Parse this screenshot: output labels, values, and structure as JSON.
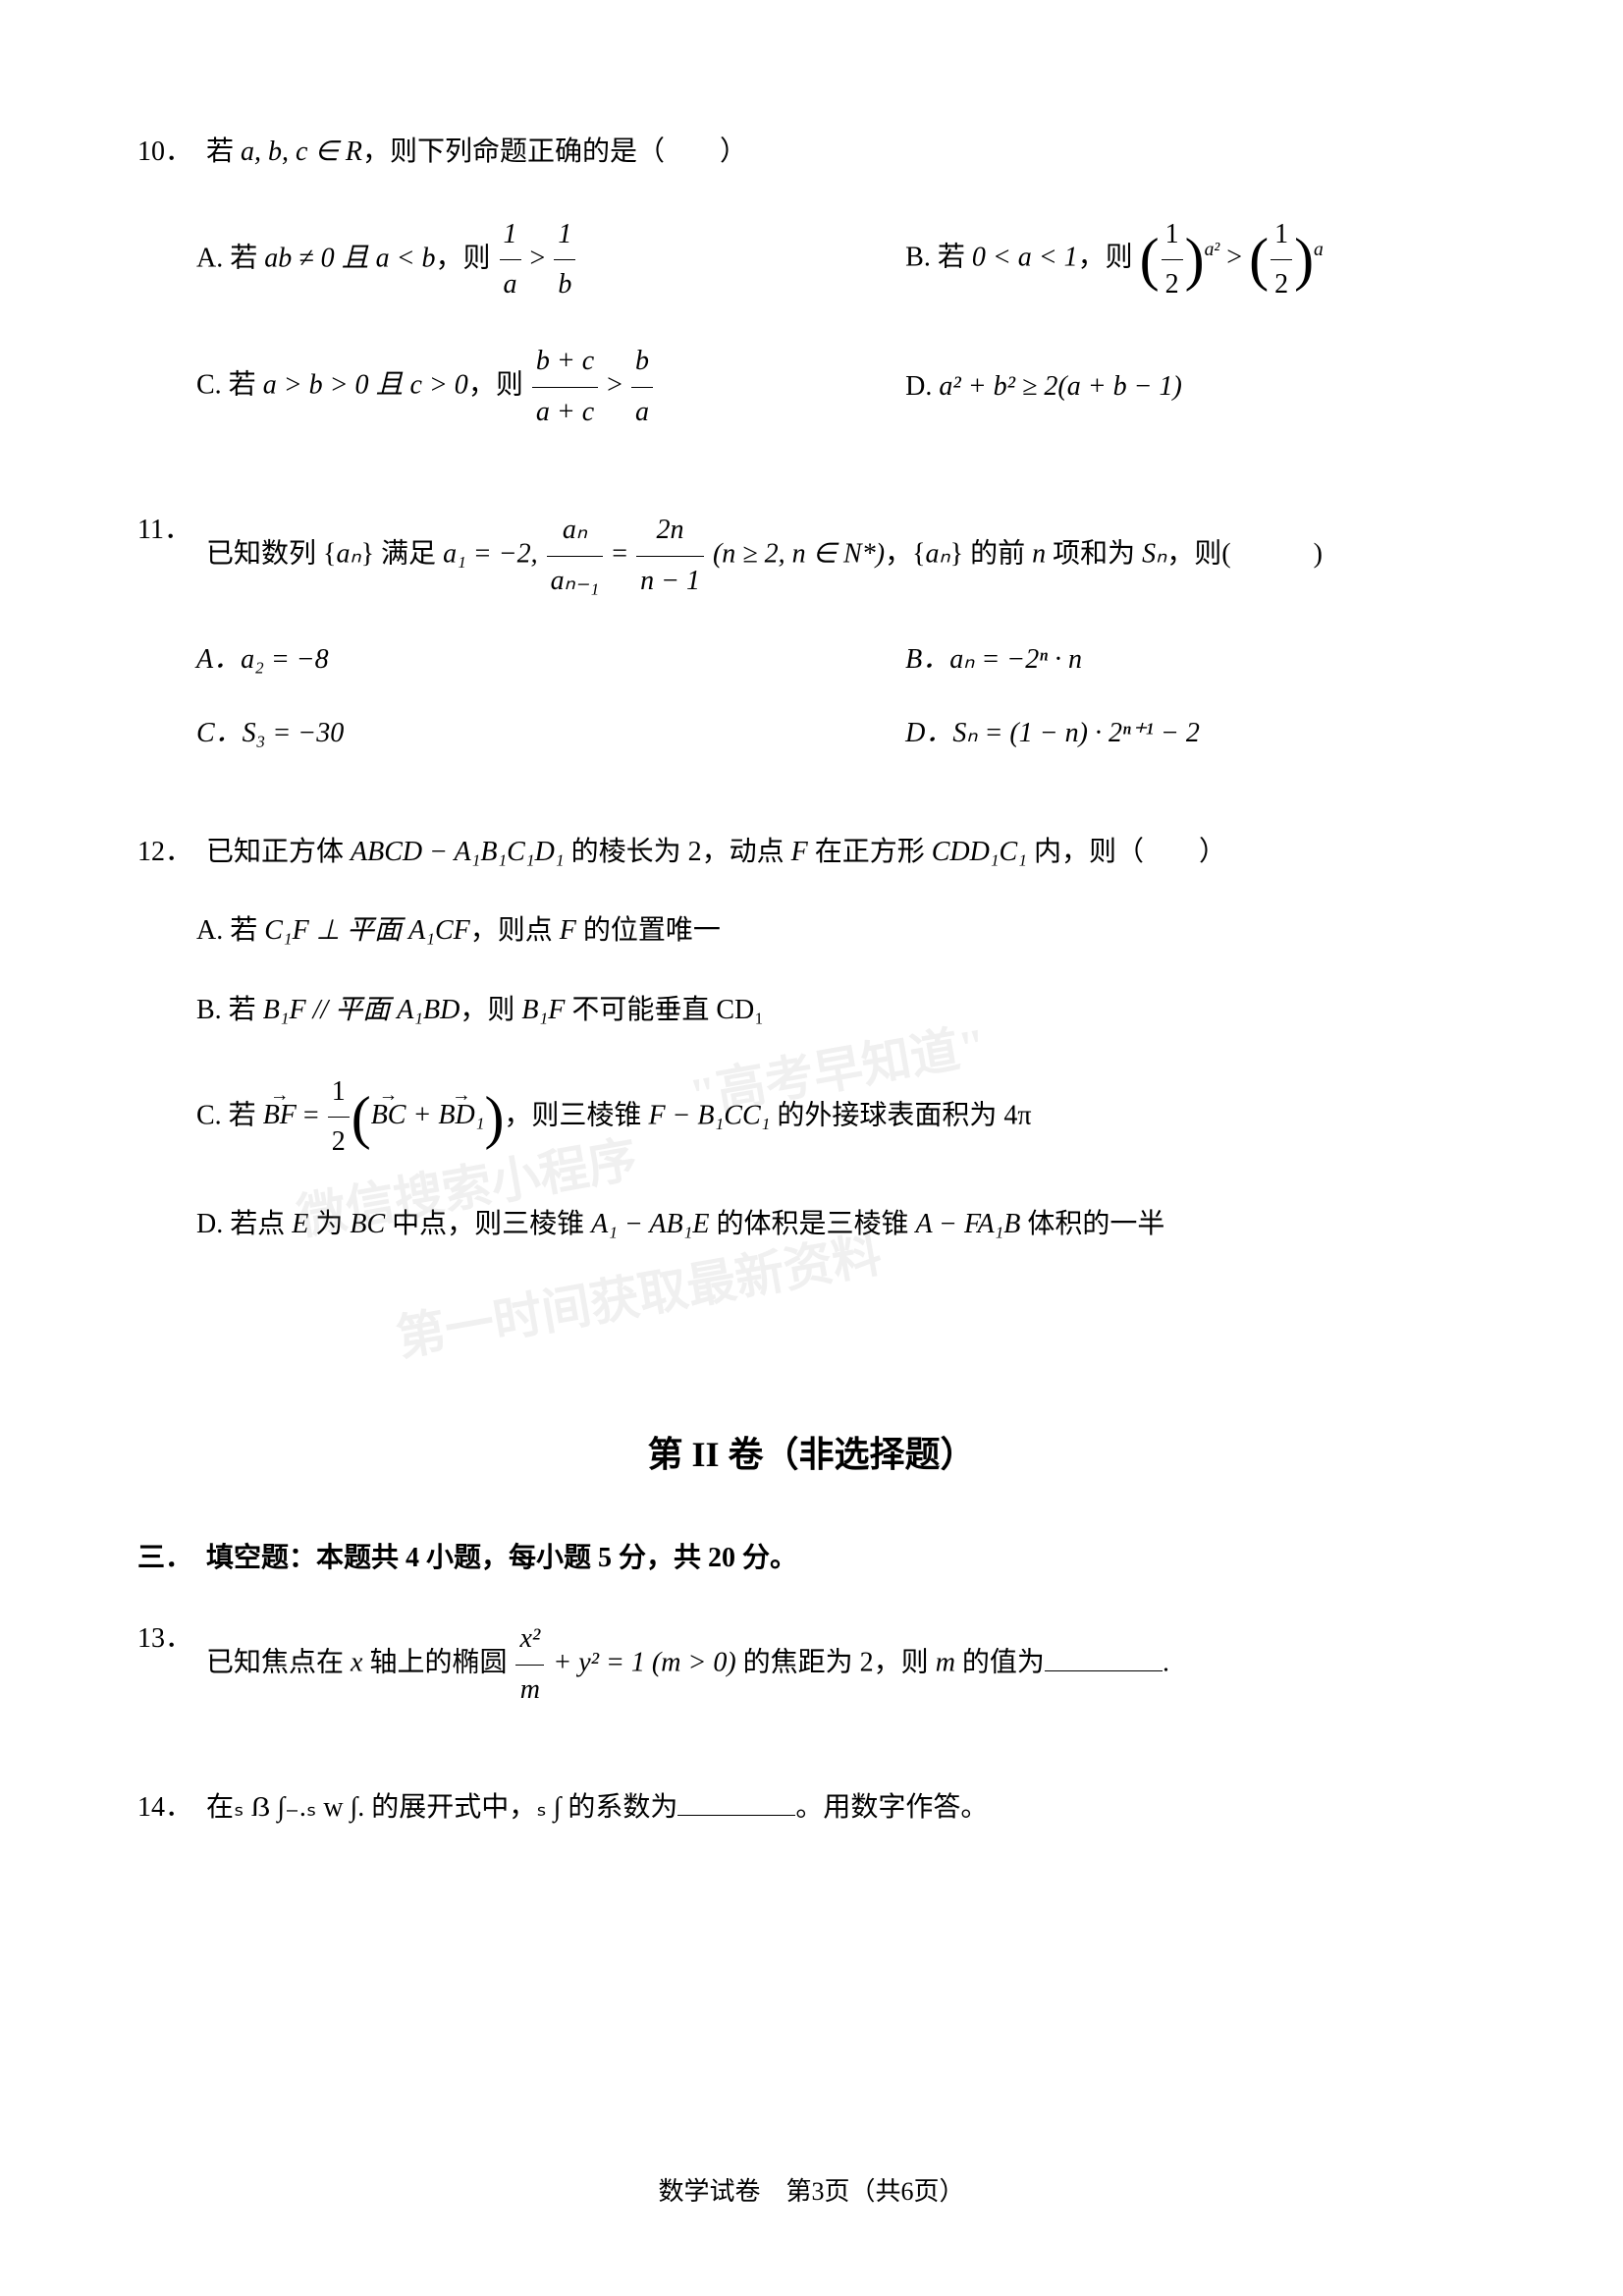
{
  "page": {
    "background_color": "#ffffff",
    "text_color": "#000000",
    "base_fontsize": 28,
    "footer": "数学试卷　第3页（共6页）"
  },
  "watermarks": {
    "line1": "\"高考早知道\"",
    "line2": "微信搜索小程序",
    "line3": "第一时间获取最新资料"
  },
  "questions": [
    {
      "number": "10．",
      "stem_parts": {
        "p1": "若 ",
        "p2": "a, b, c ∈ R",
        "p3": "，则下列命题正确的是（　　）"
      },
      "options": {
        "A": {
          "prefix": "A. 若 ",
          "math": "ab ≠ 0 且 a < b",
          "mid": "，则 ",
          "frac1_num": "1",
          "frac1_den": "a",
          "op": " > ",
          "frac2_num": "1",
          "frac2_den": "b"
        },
        "B": {
          "prefix": "B. 若 ",
          "cond": "0 < a < 1",
          "mid": "，则 ",
          "base1": "½",
          "exp1": "a²",
          "op": " > ",
          "base2": "½",
          "exp2": "a"
        },
        "C": {
          "prefix": "C. 若 ",
          "cond": "a > b > 0 且 c > 0",
          "mid": "，则 ",
          "f1num": "b + c",
          "f1den": "a + c",
          "op": " > ",
          "f2num": "b",
          "f2den": "a"
        },
        "D": {
          "prefix": "D. ",
          "math": "a² + b² ≥ 2(a + b − 1)"
        }
      }
    },
    {
      "number": "11．",
      "stem_parts": {
        "p1": "已知数列 {",
        "p2": "aₙ",
        "p3": "} 满足 ",
        "a1": "a₁ = −2, ",
        "frac_an_num": "aₙ",
        "frac_an_den": "aₙ₋₁",
        "eq": " = ",
        "frac2_num": "2n",
        "frac2_den": "n − 1",
        "cond": " (n ≥ 2, n ∈ N*)",
        "p4": "，{",
        "p5": "aₙ",
        "p6": "} 的前 ",
        "p7": "n",
        "p8": " 项和为 ",
        "sn": "Sₙ",
        "p9": "，则(　　　)"
      },
      "options": {
        "A": "A．a₂ = −8",
        "B": "B．aₙ = −2ⁿ · n",
        "C": "C．S₃ = −30",
        "D": "D．Sₙ = (1 − n) · 2ⁿ⁺¹ − 2"
      }
    },
    {
      "number": "12．",
      "stem_parts": {
        "p1": "已知正方体 ",
        "cube": "ABCD − A₁B₁C₁D₁",
        "p2": " 的棱长为 2，动点 ",
        "p3": "F",
        "p4": " 在正方形 ",
        "sq": "CDD₁C₁",
        "p5": " 内，则（　　）"
      },
      "options": {
        "A": {
          "prefix": "A. 若 ",
          "m1": "C₁F ⊥ 平面 A₁CF",
          "mid": "，则点 ",
          "m2": "F",
          "end": " 的位置唯一"
        },
        "B": {
          "prefix": "B. 若 ",
          "m1": "B₁F // 平面 A₁BD",
          "mid": "，则 ",
          "m2": "B₁F",
          "end": " 不可能垂直 CD₁"
        },
        "C": {
          "prefix": "C. 若 ",
          "bf": "BF",
          "eq": " = ",
          "half_num": "1",
          "half_den": "2",
          "paren_content": "BC + BD₁",
          "mid": "，则三棱锥 ",
          "pyr": "F − B₁CC₁",
          "end": " 的外接球表面积为 4π"
        },
        "D": {
          "prefix": "D. 若点 ",
          "e": "E",
          "p1": " 为 ",
          "bc": "BC",
          "p2": " 中点，则三棱锥 ",
          "pyr1": "A₁ − AB₁E",
          "p3": " 的体积是三棱锥 ",
          "pyr2": "A − FA₁B",
          "p4": " 体积的一半"
        }
      }
    }
  ],
  "section2": {
    "title": "第 II 卷（非选择题）",
    "subsection": "三．　填空题：本题共 4 小题，每小题 5 分，共 20 分。"
  },
  "fill_questions": [
    {
      "number": "13．",
      "p1": "已知焦点在 ",
      "xaxis": "x",
      "p2": " 轴上的椭圆 ",
      "frac_num": "x²",
      "frac_den": "m",
      "p3": " + y² = 1 (m > 0)",
      "p4": " 的焦距为 2，则 ",
      "m": "m",
      "p5": " 的值为",
      "p6": "."
    },
    {
      "number": "14．",
      "text": "在ₛ ẞ ∫₋.ₛ w ∫. 的展开式中，ₛ ∫  的系数为",
      "suffix": "。用数字作答。"
    }
  ]
}
